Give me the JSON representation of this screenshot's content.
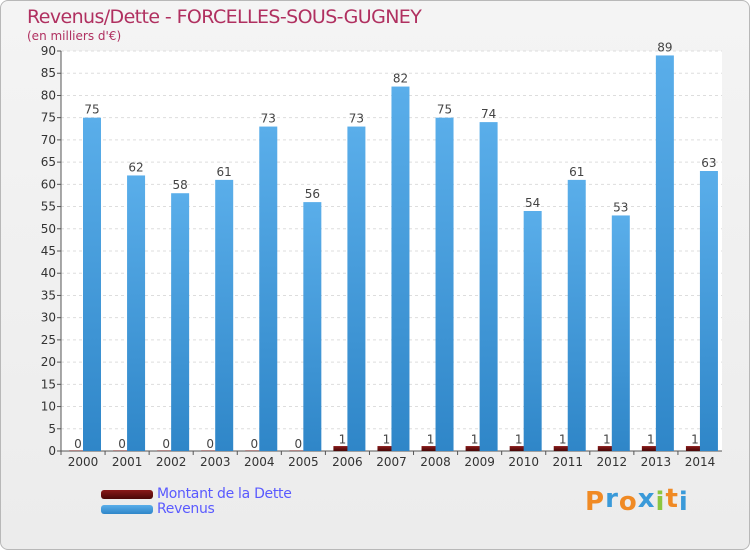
{
  "title": "Revenus/Dette - FORCELLES-SOUS-GUGNEY",
  "subtitle": "(en milliers d'€)",
  "logo": {
    "letters": [
      "P",
      "r",
      "o",
      "x",
      "i",
      "t",
      "i"
    ],
    "colors": [
      "#f08a24",
      "#3a9ad9",
      "#f08a24",
      "#3a9ad9",
      "#8cc63f",
      "#f08a24",
      "#3a9ad9"
    ]
  },
  "chart_data": {
    "type": "bar",
    "categories": [
      "2000",
      "2001",
      "2002",
      "2003",
      "2004",
      "2005",
      "2006",
      "2007",
      "2008",
      "2009",
      "2010",
      "2011",
      "2012",
      "2013",
      "2014"
    ],
    "series": [
      {
        "name": "Montant de la Dette",
        "color": "#6b0f0f",
        "values": [
          0,
          0,
          0,
          0,
          0,
          0,
          1,
          1,
          1,
          1,
          1,
          1,
          1,
          1,
          1
        ]
      },
      {
        "name": "Revenus",
        "color": "#4aa3e3",
        "values": [
          75,
          62,
          58,
          61,
          73,
          56,
          73,
          82,
          75,
          74,
          54,
          61,
          53,
          89,
          63
        ]
      }
    ],
    "y_ticks": [
      "0",
      "5",
      "10",
      "15",
      "20",
      "25",
      "30",
      "35",
      "40",
      "45",
      "50",
      "55",
      "60",
      "65",
      "70",
      "75",
      "80",
      "85",
      "90"
    ],
    "ylim": [
      0,
      90
    ],
    "grid": true,
    "legend": "bottom-left"
  }
}
